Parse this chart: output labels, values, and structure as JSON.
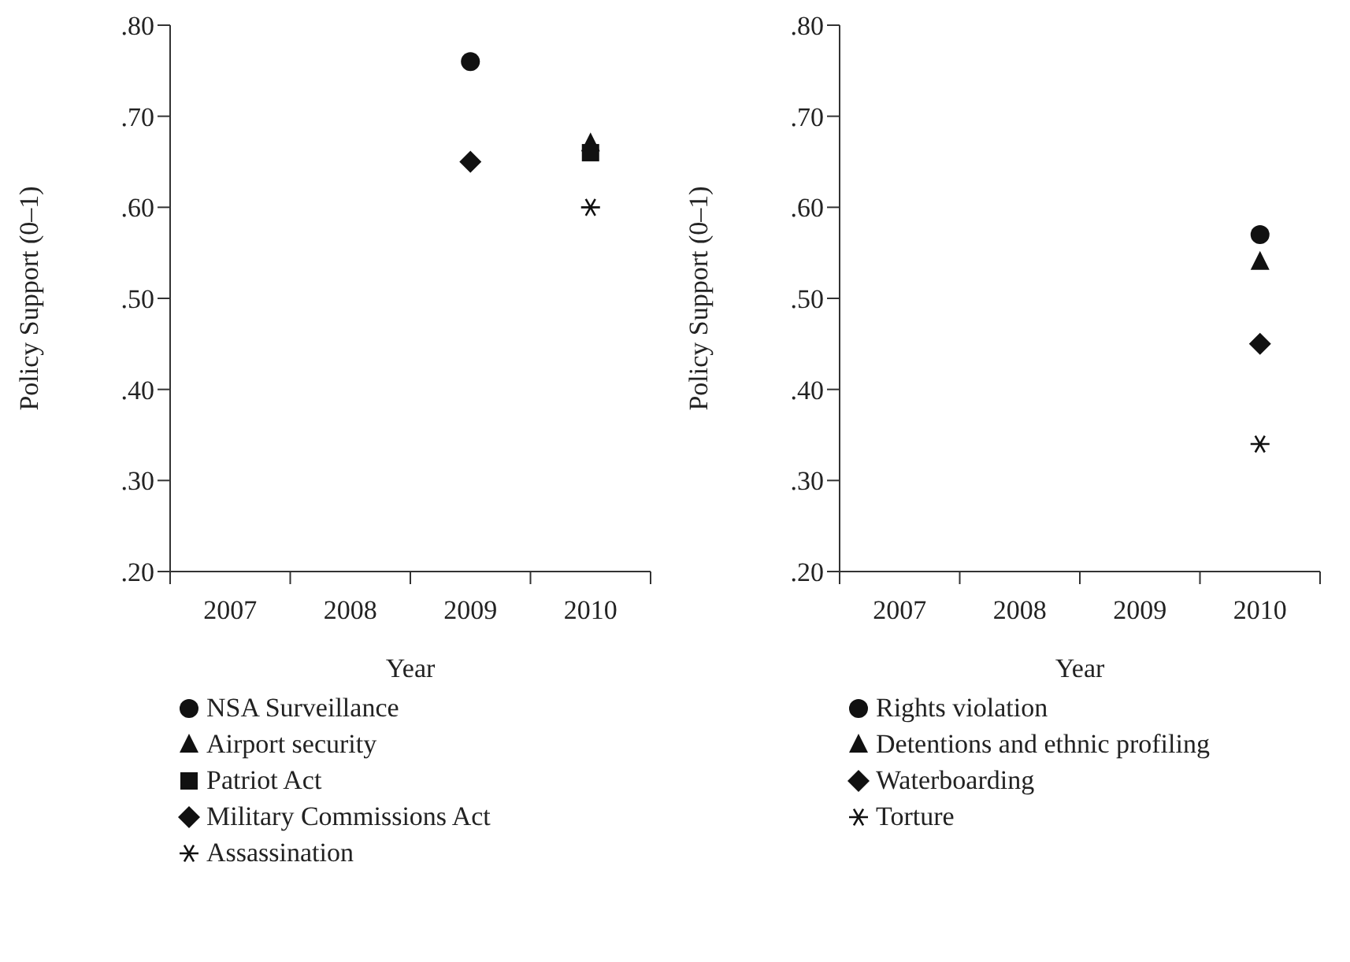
{
  "chart_data": [
    {
      "type": "scatter",
      "categories": [
        "2007",
        "2008",
        "2009",
        "2010"
      ],
      "xlabel": "Year",
      "ylabel": "Policy Support (0–1)",
      "ylim": [
        0.2,
        0.8
      ],
      "yticks": [
        {
          "value": 0.2,
          "label": ".20"
        },
        {
          "value": 0.3,
          "label": ".30"
        },
        {
          "value": 0.4,
          "label": ".40"
        },
        {
          "value": 0.5,
          "label": ".50"
        },
        {
          "value": 0.6,
          "label": ".60"
        },
        {
          "value": 0.7,
          "label": ".70"
        },
        {
          "value": 0.8,
          "label": ".80"
        }
      ],
      "legend": "bottom",
      "series": [
        {
          "name": "NSA Surveillance",
          "color": "#111111",
          "marker": "circle",
          "values": [
            null,
            null,
            0.76,
            null
          ]
        },
        {
          "name": "Airport security",
          "color": "#111111",
          "marker": "triangle",
          "values": [
            null,
            null,
            null,
            0.67
          ]
        },
        {
          "name": "Patriot Act",
          "color": "#111111",
          "marker": "square",
          "values": [
            null,
            null,
            null,
            0.66
          ]
        },
        {
          "name": "Military Commissions Act",
          "color": "#111111",
          "marker": "diamond",
          "values": [
            null,
            null,
            0.65,
            null
          ]
        },
        {
          "name": "Assassination",
          "color": "#111111",
          "marker": "cross",
          "values": [
            null,
            null,
            null,
            0.6
          ]
        }
      ]
    },
    {
      "type": "scatter",
      "categories": [
        "2007",
        "2008",
        "2009",
        "2010"
      ],
      "xlabel": "Year",
      "ylabel": "Policy Support (0–1)",
      "ylim": [
        0.2,
        0.8
      ],
      "yticks": [
        {
          "value": 0.2,
          "label": ".20"
        },
        {
          "value": 0.3,
          "label": ".30"
        },
        {
          "value": 0.4,
          "label": ".40"
        },
        {
          "value": 0.5,
          "label": ".50"
        },
        {
          "value": 0.6,
          "label": ".60"
        },
        {
          "value": 0.7,
          "label": ".70"
        },
        {
          "value": 0.8,
          "label": ".80"
        }
      ],
      "legend": "bottom",
      "series": [
        {
          "name": "Rights violation",
          "color": "#111111",
          "marker": "circle",
          "values": [
            null,
            null,
            null,
            0.57
          ]
        },
        {
          "name": "Detentions and ethnic profiling",
          "color": "#111111",
          "marker": "triangle",
          "values": [
            null,
            null,
            null,
            0.54
          ]
        },
        {
          "name": "Waterboarding",
          "color": "#111111",
          "marker": "diamond",
          "values": [
            null,
            null,
            null,
            0.45
          ]
        },
        {
          "name": "Torture",
          "color": "#111111",
          "marker": "cross",
          "values": [
            null,
            null,
            null,
            0.34
          ]
        }
      ]
    }
  ]
}
